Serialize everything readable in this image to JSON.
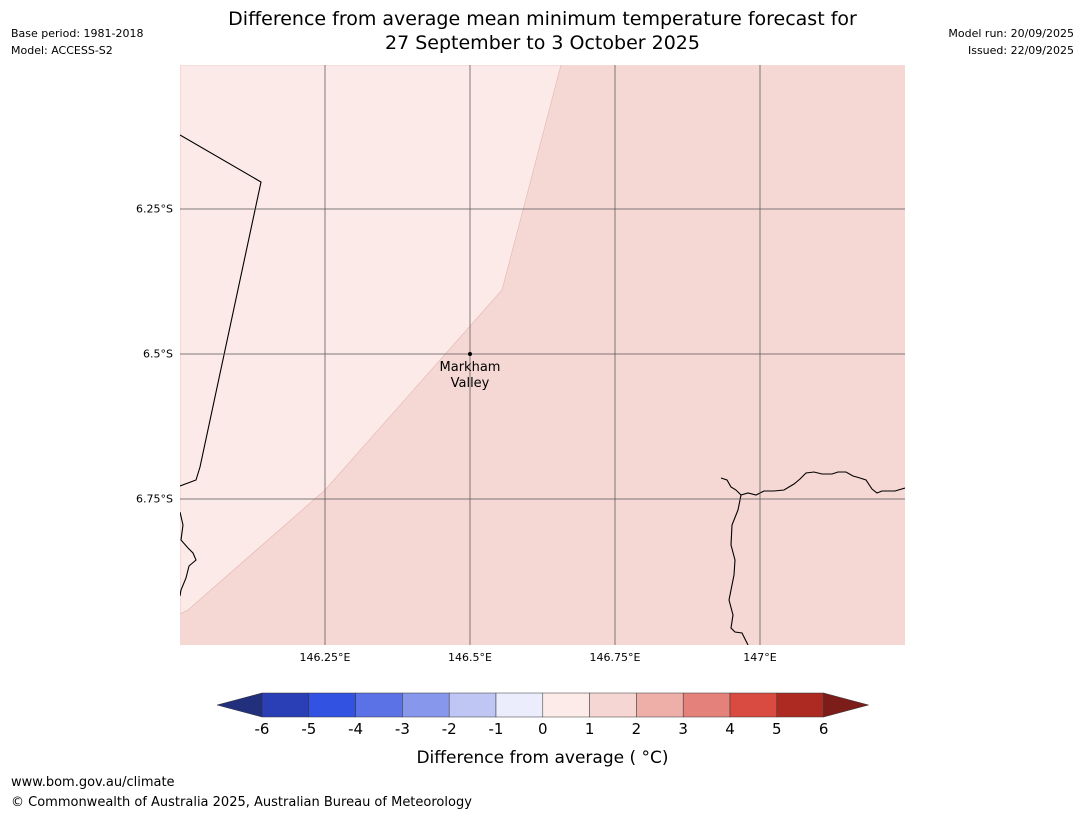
{
  "header": {
    "title_line1": "Difference from average mean minimum temperature forecast for",
    "title_line2": "27 September to 3 October 2025",
    "base_period": "Base period: 1981-2018",
    "model": "Model: ACCESS-S2",
    "model_run": "Model run: 20/09/2025",
    "issued": "Issued: 22/09/2025"
  },
  "map": {
    "latitude_labels": [
      "6.25°S",
      "6.5°S",
      "6.75°S"
    ],
    "longitude_labels": [
      "146.25°E",
      "146.5°E",
      "146.75°E",
      "147°E"
    ],
    "place_name_line1": "Markham",
    "place_name_line2": "Valley",
    "fill_colors": {
      "zero_to_one": "#fbeae7",
      "one_to_two": "#f5d7d4"
    }
  },
  "colorbar": {
    "title": "Difference from average ( °C)",
    "tick_labels": [
      "-6",
      "-5",
      "-4",
      "-3",
      "-2",
      "-1",
      "0",
      "1",
      "2",
      "3",
      "4",
      "5",
      "6"
    ],
    "colors": [
      "#222f7d",
      "#2a3fb5",
      "#3252e2",
      "#5a72e6",
      "#8797eb",
      "#bfc6f4",
      "#ebedfd",
      "#fcebe8",
      "#f6d6d2",
      "#eeafa9",
      "#e5817b",
      "#d94b40",
      "#ad2a23",
      "#7d1d19"
    ]
  },
  "footer": {
    "url": "www.bom.gov.au/climate",
    "copyright": "© Commonwealth of Australia 2025, Australian Bureau of Meteorology"
  }
}
